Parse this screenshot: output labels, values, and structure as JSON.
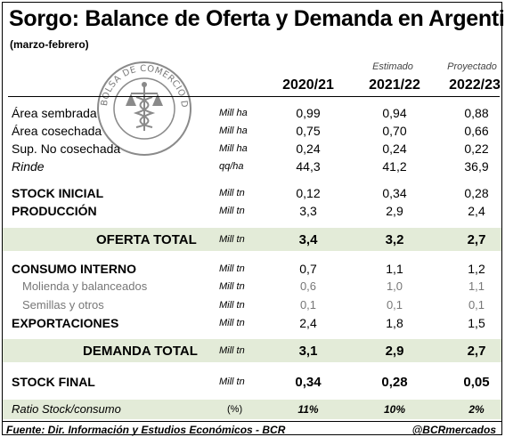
{
  "title": "Sorgo: Balance de Oferta y Demanda en Argentina",
  "subtitle": "(marzo-febrero)",
  "logo": {
    "icon": "bcr-seal-icon",
    "text": "BOLSA DE COMERCIO DE ROSARIO"
  },
  "columns": [
    {
      "note": "",
      "year": "2020/21"
    },
    {
      "note": "Estimado",
      "year": "2021/22"
    },
    {
      "note": "Proyectado",
      "year": "2022/23"
    }
  ],
  "rows": [
    {
      "label": "Área sembrada",
      "unit": "Mill ha",
      "values": [
        "0,99",
        "0,94",
        "0,88"
      ]
    },
    {
      "label": "Área cosechada",
      "unit": "Mill ha",
      "values": [
        "0,75",
        "0,70",
        "0,66"
      ]
    },
    {
      "label": "Sup. No cosechada",
      "unit": "Mill ha",
      "values": [
        "0,24",
        "0,24",
        "0,22"
      ]
    },
    {
      "label": "Rinde",
      "unit": "qq/ha",
      "values": [
        "44,3",
        "41,2",
        "36,9"
      ]
    },
    {
      "label": "STOCK INICIAL",
      "unit": "Mill tn",
      "values": [
        "0,12",
        "0,34",
        "0,28"
      ]
    },
    {
      "label": "PRODUCCIÓN",
      "unit": "Mill tn",
      "values": [
        "3,3",
        "2,9",
        "2,4"
      ]
    },
    {
      "label": "OFERTA TOTAL",
      "unit": "Mill tn",
      "values": [
        "3,4",
        "3,2",
        "2,7"
      ]
    },
    {
      "label": "CONSUMO INTERNO",
      "unit": "Mill tn",
      "values": [
        "0,7",
        "1,1",
        "1,2"
      ]
    },
    {
      "label": "Molienda y balanceados",
      "unit": "Mill tn",
      "values": [
        "0,6",
        "1,0",
        "1,1"
      ]
    },
    {
      "label": "Semillas y otros",
      "unit": "Mill tn",
      "values": [
        "0,1",
        "0,1",
        "0,1"
      ]
    },
    {
      "label": "EXPORTACIONES",
      "unit": "Mill tn",
      "values": [
        "2,4",
        "1,8",
        "1,5"
      ]
    },
    {
      "label": "DEMANDA TOTAL",
      "unit": "Mill tn",
      "values": [
        "3,1",
        "2,9",
        "2,7"
      ]
    },
    {
      "label": "STOCK FINAL",
      "unit": "Mill tn",
      "values": [
        "0,34",
        "0,28",
        "0,05"
      ]
    },
    {
      "label": "Ratio Stock/consumo",
      "unit": "(%)",
      "values": [
        "11%",
        "10%",
        "2%"
      ]
    }
  ],
  "footer": {
    "source": "Fuente: Dir. Información y Estudios Económicos - BCR",
    "handle": "@BCRmercados"
  },
  "colors": {
    "band": "#e3ebd8"
  }
}
